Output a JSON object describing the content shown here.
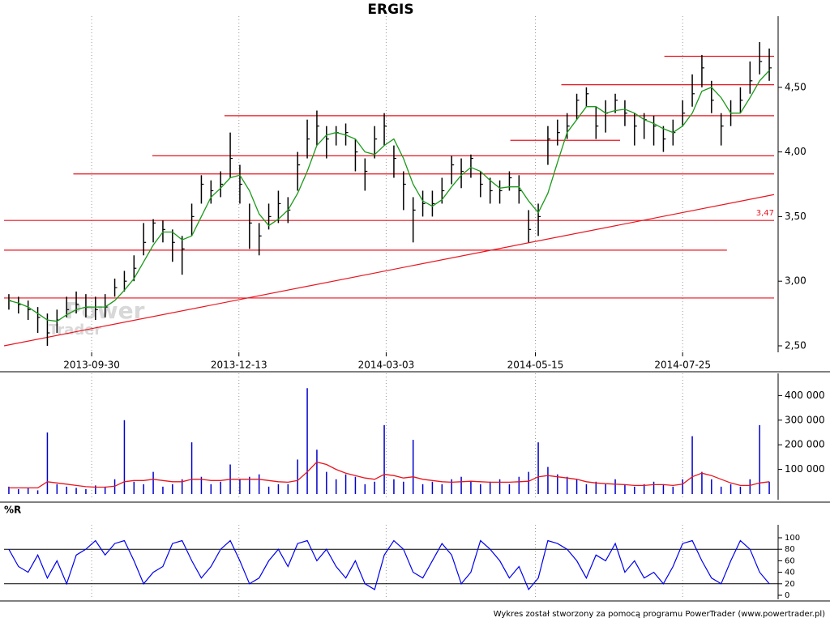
{
  "chart_data": [
    {
      "type": "ohlc",
      "title": "ERGIS",
      "color": "#000000",
      "xlim": [
        0,
        80
      ],
      "xticks": [
        {
          "value": 9.1,
          "label": "2013-09-30"
        },
        {
          "value": 24.4,
          "label": "2013-12-13"
        },
        {
          "value": 39.7,
          "label": "2014-03-03"
        },
        {
          "value": 55.2,
          "label": "2014-05-15"
        },
        {
          "value": 70.5,
          "label": "2014-07-25"
        }
      ],
      "ylim": [
        2.5,
        5.05
      ],
      "yticks": [
        {
          "value": 2.5,
          "label": "2,50"
        },
        {
          "value": 3,
          "label": "3,00"
        },
        {
          "value": 3.5,
          "label": "3,50"
        },
        {
          "value": 4,
          "label": "4,00"
        },
        {
          "value": 4.5,
          "label": "4,50"
        }
      ],
      "high": [
        2.9,
        2.88,
        2.85,
        2.8,
        2.75,
        2.78,
        2.88,
        2.92,
        2.9,
        2.88,
        2.9,
        3.02,
        3.08,
        3.2,
        3.45,
        3.48,
        3.47,
        3.4,
        3.35,
        3.6,
        3.82,
        3.78,
        3.85,
        4.15,
        3.9,
        3.6,
        3.45,
        3.6,
        3.7,
        3.65,
        4.0,
        4.25,
        4.32,
        4.2,
        4.2,
        4.22,
        4.1,
        3.95,
        4.2,
        4.3,
        4.05,
        3.85,
        3.65,
        3.7,
        3.7,
        3.8,
        3.97,
        3.95,
        3.98,
        3.85,
        3.8,
        3.78,
        3.85,
        3.82,
        3.55,
        3.6,
        4.2,
        4.25,
        4.3,
        4.45,
        4.5,
        4.35,
        4.4,
        4.45,
        4.4,
        4.3,
        4.3,
        4.28,
        4.2,
        4.25,
        4.4,
        4.6,
        4.75,
        4.55,
        4.3,
        4.4,
        4.5,
        4.7,
        4.85,
        4.8
      ],
      "low": [
        2.78,
        2.75,
        2.7,
        2.6,
        2.5,
        2.6,
        2.72,
        2.75,
        2.72,
        2.7,
        2.72,
        2.88,
        2.92,
        3.0,
        3.2,
        3.3,
        3.3,
        3.15,
        3.05,
        3.35,
        3.6,
        3.6,
        3.65,
        3.8,
        3.6,
        3.25,
        3.2,
        3.4,
        3.45,
        3.45,
        3.7,
        3.95,
        4.05,
        3.95,
        4.05,
        4.05,
        3.85,
        3.7,
        3.95,
        4.05,
        3.8,
        3.55,
        3.3,
        3.5,
        3.5,
        3.6,
        3.75,
        3.72,
        3.8,
        3.65,
        3.6,
        3.6,
        3.7,
        3.6,
        3.3,
        3.35,
        3.9,
        4.05,
        4.1,
        4.25,
        4.35,
        4.1,
        4.15,
        4.3,
        4.2,
        4.05,
        4.1,
        4.05,
        4.0,
        4.05,
        4.2,
        4.35,
        4.5,
        4.3,
        4.05,
        4.2,
        4.3,
        4.45,
        4.6,
        4.55
      ],
      "close": [
        2.85,
        2.82,
        2.78,
        2.72,
        2.6,
        2.7,
        2.78,
        2.82,
        2.8,
        2.78,
        2.8,
        2.95,
        3.0,
        3.1,
        3.3,
        3.45,
        3.4,
        3.3,
        3.25,
        3.5,
        3.75,
        3.7,
        3.75,
        3.95,
        3.75,
        3.45,
        3.35,
        3.5,
        3.6,
        3.55,
        3.9,
        4.1,
        4.2,
        4.1,
        4.15,
        4.15,
        4.0,
        3.85,
        4.1,
        4.2,
        3.95,
        3.75,
        3.55,
        3.6,
        3.6,
        3.7,
        3.9,
        3.85,
        3.95,
        3.75,
        3.7,
        3.7,
        3.8,
        3.7,
        3.4,
        3.5,
        4.1,
        4.15,
        4.2,
        4.4,
        4.45,
        4.2,
        4.3,
        4.4,
        4.3,
        4.2,
        4.25,
        4.2,
        4.1,
        4.15,
        4.3,
        4.45,
        4.65,
        4.4,
        4.2,
        4.3,
        4.4,
        4.55,
        4.7,
        4.65
      ],
      "ma": {
        "color": "#1a9a1a",
        "values": [
          2.85,
          2.83,
          2.8,
          2.75,
          2.7,
          2.69,
          2.74,
          2.78,
          2.8,
          2.8,
          2.8,
          2.85,
          2.93,
          3.02,
          3.15,
          3.28,
          3.38,
          3.38,
          3.32,
          3.35,
          3.5,
          3.65,
          3.72,
          3.8,
          3.82,
          3.7,
          3.52,
          3.43,
          3.48,
          3.55,
          3.68,
          3.85,
          4.05,
          4.13,
          4.15,
          4.13,
          4.1,
          4.0,
          3.98,
          4.05,
          4.1,
          3.95,
          3.75,
          3.62,
          3.58,
          3.63,
          3.73,
          3.82,
          3.88,
          3.85,
          3.78,
          3.72,
          3.73,
          3.73,
          3.62,
          3.53,
          3.68,
          3.92,
          4.15,
          4.25,
          4.35,
          4.35,
          4.3,
          4.32,
          4.33,
          4.3,
          4.25,
          4.22,
          4.18,
          4.15,
          4.2,
          4.3,
          4.47,
          4.5,
          4.42,
          4.3,
          4.3,
          4.42,
          4.55,
          4.63
        ]
      },
      "line_color": "#e8141e",
      "levels": [
        {
          "x": [
            68.6,
            80
          ],
          "y": 4.74
        },
        {
          "x": [
            57.9,
            80
          ],
          "y": 4.52
        },
        {
          "x": [
            22.9,
            80
          ],
          "y": 4.28
        },
        {
          "x": [
            52.6,
            64.0
          ],
          "y": 4.09
        },
        {
          "x": [
            15.4,
            80
          ],
          "y": 3.97
        },
        {
          "x": [
            7.2,
            80
          ],
          "y": 3.83
        },
        {
          "x": [
            0,
            80
          ],
          "y": 3.47,
          "label": "3,47"
        },
        {
          "x": [
            0,
            75.1
          ],
          "y": 3.24
        },
        {
          "x": [
            0,
            80
          ],
          "y": 2.87
        }
      ],
      "trendline": {
        "x": [
          0,
          80
        ],
        "y": [
          2.5,
          3.67
        ]
      }
    },
    {
      "type": "bar",
      "color": "#0000cc",
      "xlim": [
        0,
        80
      ],
      "ylim": [
        0,
        490000
      ],
      "yticks": [
        {
          "value": 100000,
          "label": "100 000"
        },
        {
          "value": 200000,
          "label": "200 000"
        },
        {
          "value": 300000,
          "label": "300 000"
        },
        {
          "value": 400000,
          "label": "400 000"
        }
      ],
      "values": [
        30000,
        20000,
        25000,
        15000,
        250000,
        40000,
        30000,
        25000,
        20000,
        35000,
        30000,
        60000,
        300000,
        50000,
        40000,
        90000,
        30000,
        40000,
        60000,
        210000,
        70000,
        40000,
        50000,
        120000,
        60000,
        70000,
        80000,
        30000,
        40000,
        40000,
        140000,
        430000,
        180000,
        90000,
        60000,
        80000,
        70000,
        40000,
        50000,
        280000,
        60000,
        50000,
        220000,
        40000,
        50000,
        40000,
        60000,
        70000,
        50000,
        40000,
        50000,
        60000,
        40000,
        70000,
        90000,
        210000,
        110000,
        80000,
        70000,
        60000,
        40000,
        50000,
        40000,
        60000,
        40000,
        30000,
        40000,
        50000,
        40000,
        30000,
        60000,
        235000,
        90000,
        60000,
        30000,
        40000,
        30000,
        60000,
        280000,
        50000
      ],
      "ma": {
        "color": "#e8141e",
        "values": [
          25000,
          25000,
          25000,
          25000,
          50000,
          45000,
          40000,
          35000,
          30000,
          28000,
          28000,
          32000,
          50000,
          55000,
          55000,
          60000,
          55000,
          50000,
          50000,
          60000,
          60000,
          55000,
          55000,
          60000,
          60000,
          60000,
          60000,
          55000,
          50000,
          48000,
          55000,
          90000,
          130000,
          120000,
          100000,
          85000,
          75000,
          65000,
          60000,
          80000,
          75000,
          65000,
          70000,
          60000,
          55000,
          50000,
          48000,
          50000,
          52000,
          50000,
          48000,
          48000,
          48000,
          50000,
          52000,
          70000,
          75000,
          70000,
          65000,
          60000,
          50000,
          45000,
          42000,
          40000,
          38000,
          35000,
          35000,
          38000,
          38000,
          35000,
          40000,
          70000,
          85000,
          75000,
          60000,
          45000,
          35000,
          35000,
          45000,
          50000
        ]
      }
    },
    {
      "type": "line",
      "title": "%R",
      "color": "#0000ee",
      "xlim": [
        0,
        80
      ],
      "ylim": [
        0,
        100
      ],
      "yticks": [
        0,
        20,
        40,
        60,
        80,
        100
      ],
      "ref_lines": [
        20,
        80
      ],
      "values": [
        80,
        50,
        40,
        70,
        30,
        60,
        20,
        70,
        80,
        95,
        70,
        90,
        95,
        60,
        20,
        40,
        50,
        90,
        95,
        60,
        30,
        50,
        80,
        95,
        60,
        20,
        30,
        60,
        80,
        50,
        90,
        95,
        60,
        80,
        50,
        30,
        60,
        20,
        10,
        70,
        95,
        80,
        40,
        30,
        60,
        90,
        70,
        20,
        40,
        95,
        80,
        60,
        30,
        50,
        10,
        30,
        95,
        90,
        80,
        60,
        30,
        70,
        60,
        90,
        40,
        60,
        30,
        40,
        20,
        50,
        90,
        95,
        60,
        30,
        20,
        60,
        95,
        80,
        40,
        20
      ]
    }
  ],
  "watermark": [
    "Power",
    "Trader"
  ],
  "footer": "Wykres został stworzony za pomocą programu PowerTrader (www.powertrader.pl)"
}
